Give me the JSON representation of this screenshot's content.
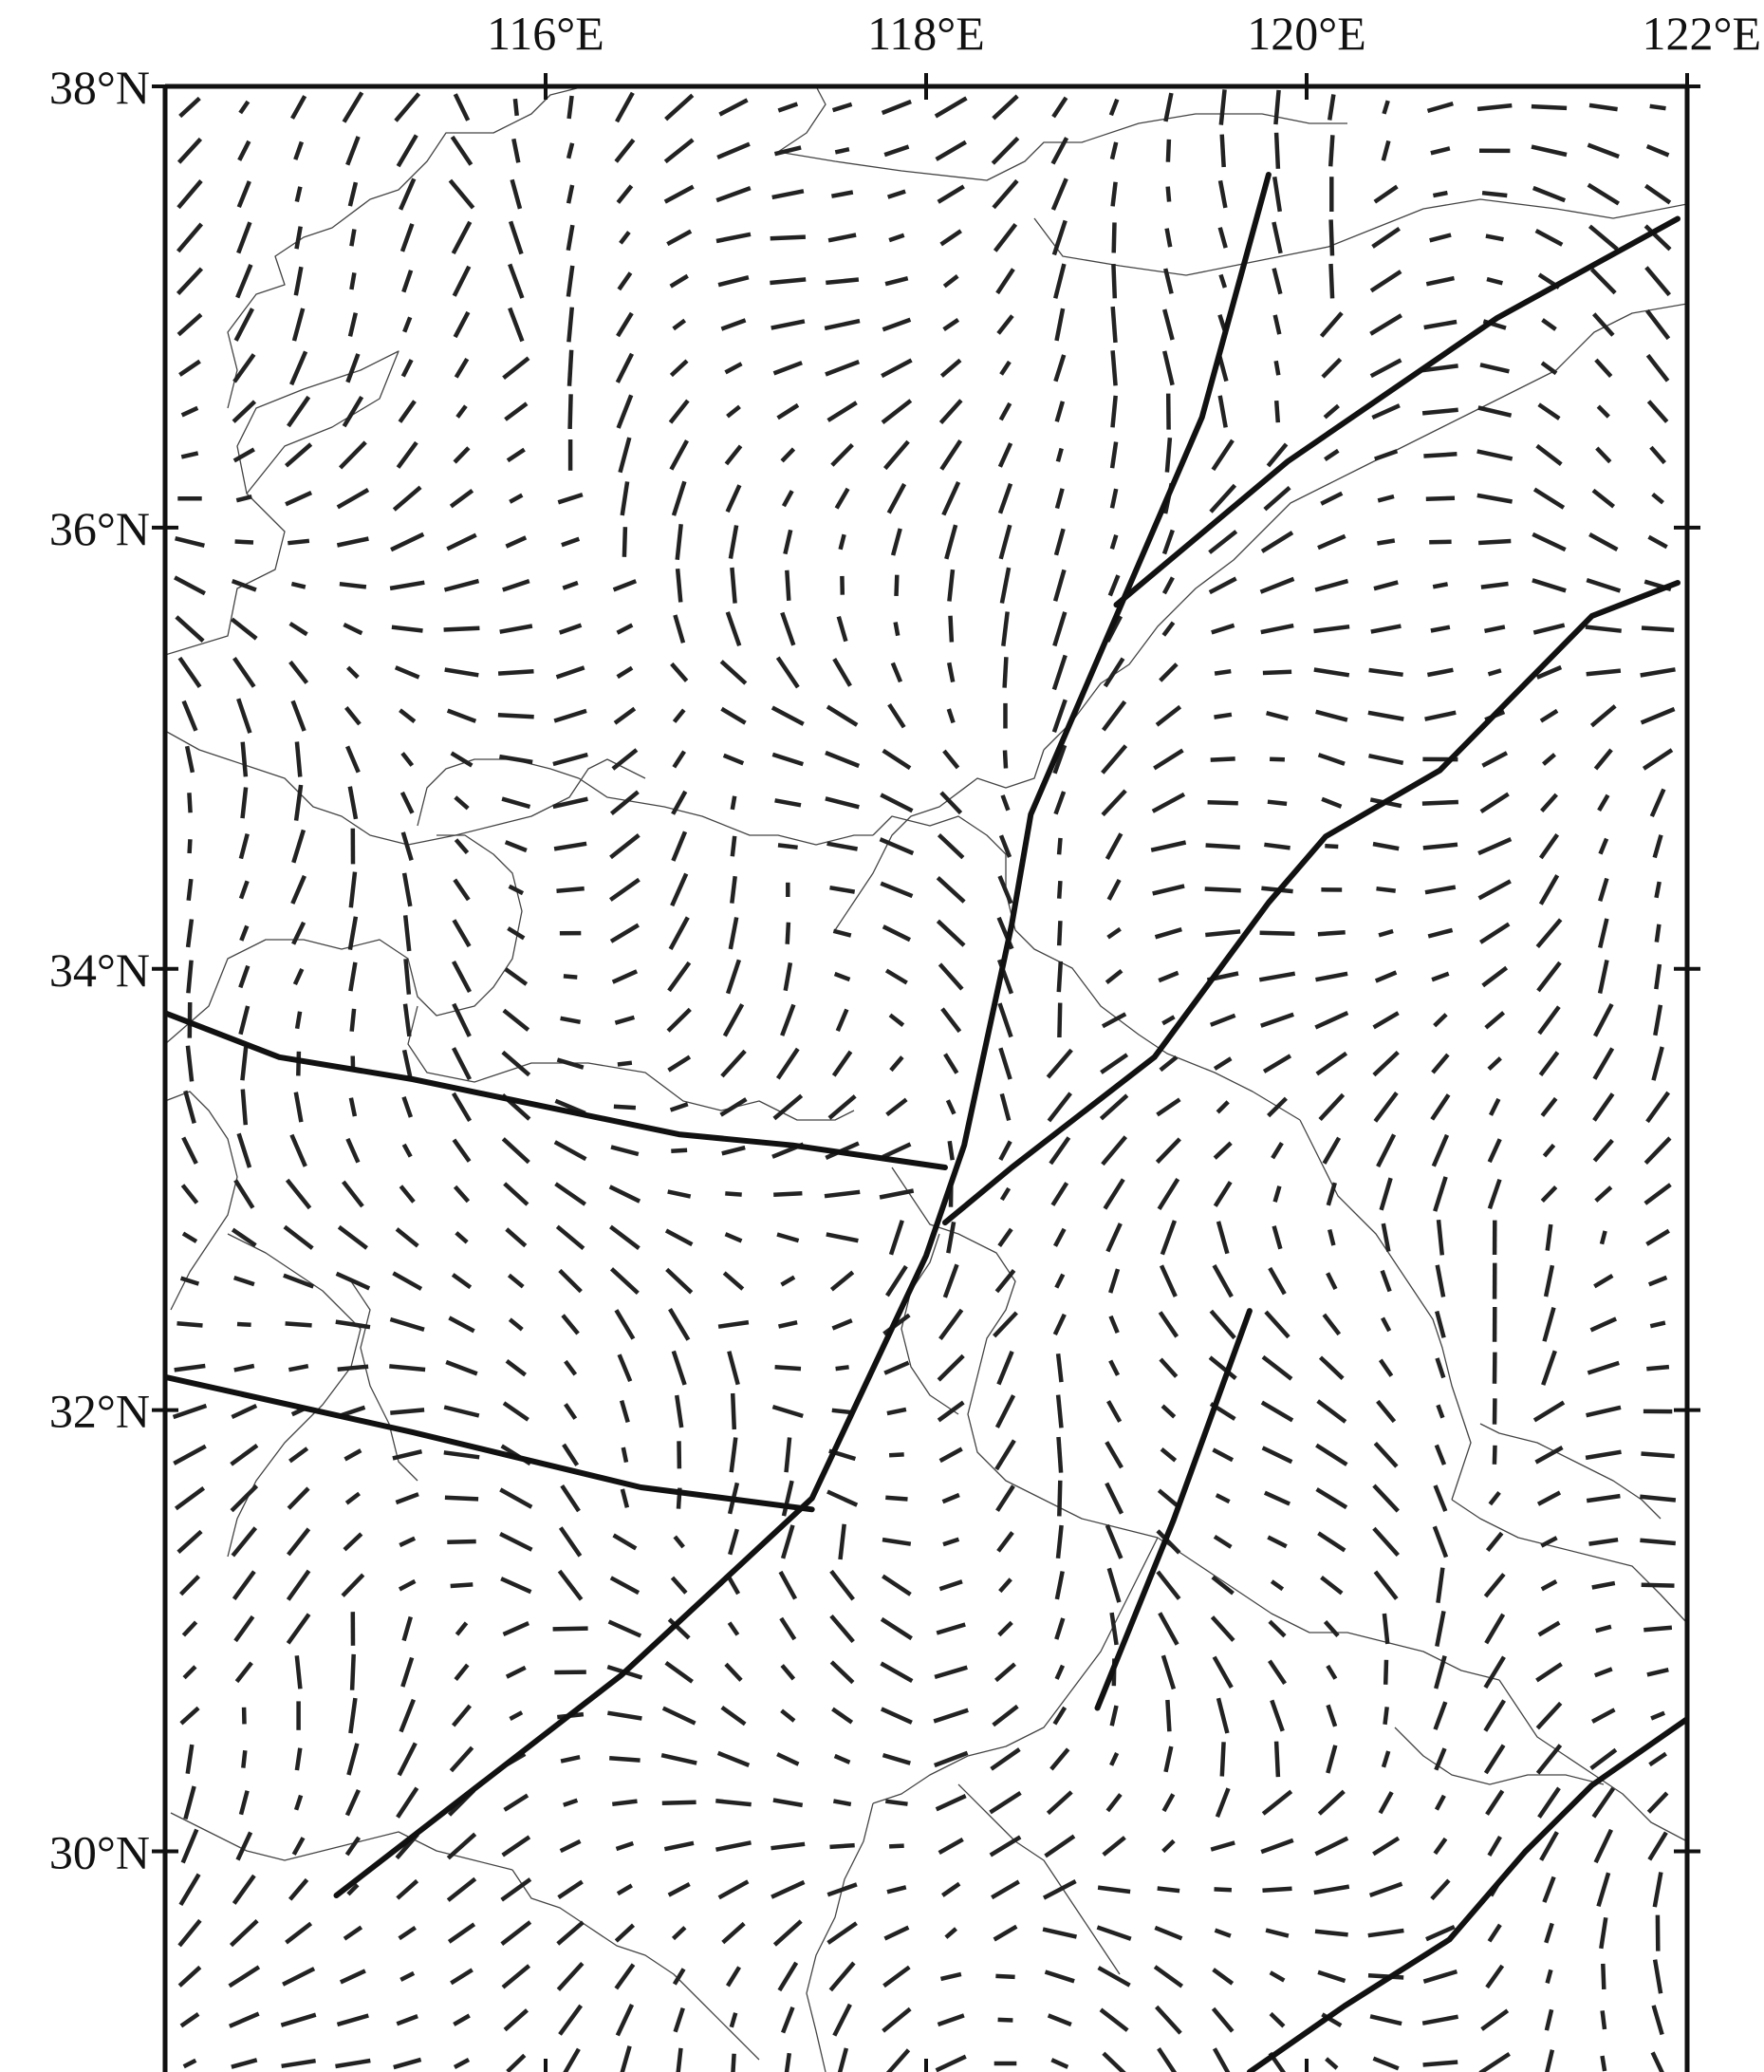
{
  "map": {
    "lon_range": [
      114.0,
      122.0
    ],
    "lat_range": [
      29.0,
      38.0
    ],
    "lon_ticks": [
      {
        "value": 116,
        "label": "116°E"
      },
      {
        "value": 118,
        "label": "118°E"
      },
      {
        "value": 120,
        "label": "120°E"
      },
      {
        "value": 122,
        "label": "122°E"
      }
    ],
    "lat_ticks": [
      {
        "value": 38,
        "label": "38°N"
      },
      {
        "value": 36,
        "label": "36°N"
      },
      {
        "value": 34,
        "label": "34°N"
      },
      {
        "value": 32,
        "label": "32°N"
      },
      {
        "value": 30,
        "label": "30°N"
      }
    ],
    "colors": {
      "frame": "#111111",
      "fault": "#111111",
      "boundary": "#444444",
      "stress_bar": "#222222"
    },
    "faults": [
      {
        "name": "",
        "points": [
          [
            119.8,
            37.6
          ],
          [
            119.45,
            36.5
          ],
          [
            118.95,
            35.5
          ],
          [
            118.55,
            34.7
          ],
          [
            118.45,
            34.2
          ],
          [
            118.2,
            33.2
          ],
          [
            118.0,
            32.7
          ],
          [
            117.4,
            31.6
          ],
          [
            116.4,
            30.8
          ],
          [
            114.9,
            29.8
          ]
        ]
      },
      {
        "name": "",
        "points": [
          [
            121.95,
            37.4
          ],
          [
            121.0,
            36.95
          ],
          [
            119.9,
            36.3
          ],
          [
            119.0,
            35.65
          ]
        ]
      },
      {
        "name": "",
        "points": [
          [
            121.95,
            35.75
          ],
          [
            121.5,
            35.6
          ],
          [
            120.7,
            34.9
          ],
          [
            120.1,
            34.6
          ],
          [
            119.8,
            34.3
          ],
          [
            119.2,
            33.6
          ],
          [
            118.45,
            33.1
          ],
          [
            118.1,
            32.85
          ]
        ]
      },
      {
        "name": "",
        "points": [
          [
            114.0,
            33.8
          ],
          [
            114.6,
            33.6
          ],
          [
            115.3,
            33.5
          ],
          [
            116.7,
            33.25
          ],
          [
            117.3,
            33.2
          ],
          [
            118.1,
            33.1
          ]
        ]
      },
      {
        "name": "",
        "points": [
          [
            114.0,
            32.15
          ],
          [
            115.3,
            31.9
          ],
          [
            116.5,
            31.65
          ],
          [
            117.4,
            31.55
          ]
        ]
      },
      {
        "name": "",
        "points": [
          [
            119.7,
            32.45
          ],
          [
            119.3,
            31.5
          ],
          [
            118.9,
            30.65
          ]
        ]
      },
      {
        "name": "",
        "points": [
          [
            122.0,
            30.6
          ],
          [
            121.5,
            30.3
          ],
          [
            121.15,
            30.0
          ],
          [
            120.75,
            29.6
          ],
          [
            120.2,
            29.3
          ],
          [
            119.7,
            29.0
          ]
        ]
      }
    ]
  }
}
